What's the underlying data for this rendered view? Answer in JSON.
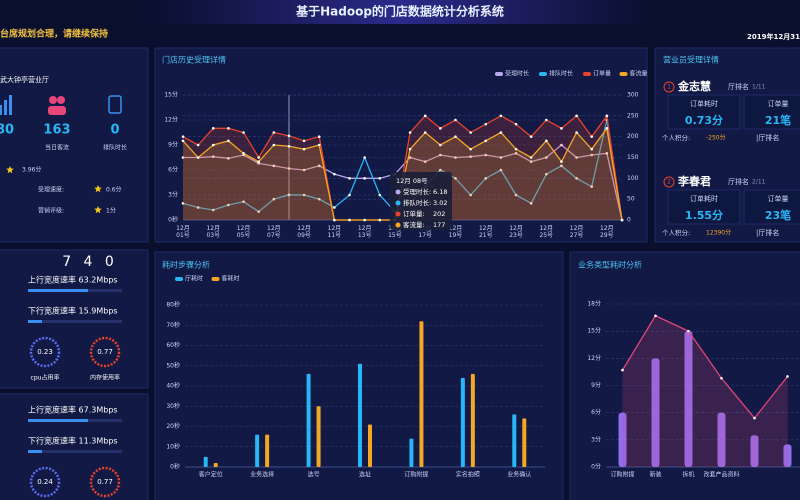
{
  "header": {
    "title": "基于Hadoop的门店数据统计分析系统",
    "notice": "台席规划合理，请继续保持",
    "date": "2019年12月31"
  },
  "store": {
    "name": "武大钟亭营业厅",
    "stats": [
      {
        "value": "80"
      },
      {
        "value": "163",
        "label": "当日客流"
      },
      {
        "value": "0",
        "label": "排队时长"
      }
    ],
    "rating": "3.96分",
    "speed_label": "受理速度:",
    "speed": "0.6分",
    "marketing_label": "营销评级:",
    "marketing": "1分"
  },
  "staff_panel": {
    "title": "营业员受理详情",
    "staff": [
      {
        "rank": "1",
        "name": "金志慧",
        "hall_rank_label": "厅排名",
        "hall_rank": "1/11",
        "order_time_label": "订单耗时",
        "order_time": "0.73分",
        "orders_label": "订单量",
        "orders": "21笔",
        "score_label": "个人积分:",
        "score": "-250分",
        "score_rank_label": "|厅排名"
      },
      {
        "rank": "2",
        "name": "李春君",
        "hall_rank_label": "厅排名",
        "hall_rank": "2/11",
        "order_time_label": "订单耗时",
        "order_time": "1.55分",
        "orders_label": "订单量",
        "orders": "23笔",
        "score_label": "个人积分:",
        "score": "12390分",
        "score_rank_label": "|厅排名"
      }
    ]
  },
  "network": {
    "counter": "7 4 0",
    "blocks": [
      {
        "up": "上行宽度速率 63.2Mbps",
        "down": "下行宽度速率 15.9Mbps",
        "cpu": "0.23",
        "cpu_label": "cpu占用率",
        "mem": "0.77",
        "mem_label": "内存使用率"
      },
      {
        "up": "上行宽度速率 67.3Mbps",
        "down": "下行宽度速率 11.3Mbps",
        "cpu": "0.24",
        "mem": "0.77"
      }
    ]
  },
  "chart_data": [
    {
      "type": "line",
      "title": "门店历史受理详情",
      "categories": [
        "12月01号",
        null,
        "12月03号",
        null,
        "12月05号",
        null,
        "12月07号",
        null,
        "12月09号",
        null,
        "12月11号",
        null,
        "12月13号",
        null,
        "12月15号",
        null,
        "12月17号",
        null,
        "12月19号",
        null,
        "12月21号",
        null,
        "12月23号",
        null,
        "12月25号",
        null,
        "12月27号",
        null,
        "12月29号",
        null
      ],
      "series": [
        {
          "name": "受理时长",
          "color": "#b9a7f0",
          "values": [
            7.5,
            7.5,
            7.6,
            7.4,
            7.8,
            6.8,
            6.5,
            6.18,
            6,
            6.5,
            5.5,
            5,
            5,
            5,
            5.5,
            7.5,
            7,
            7.8,
            7.5,
            7.6,
            7.8,
            7.5,
            8,
            7,
            7.5,
            9,
            7.5,
            7.8,
            8,
            0
          ]
        },
        {
          "name": "排队时长",
          "color": "#29b6f6",
          "values": [
            2,
            1.5,
            1.2,
            1.8,
            2.2,
            1,
            2.5,
            3.02,
            3,
            2.5,
            1.5,
            3,
            7.5,
            3,
            1,
            2,
            4,
            6,
            5,
            3,
            5,
            6,
            3,
            2,
            5.5,
            6.5,
            5,
            4,
            12,
            0
          ]
        },
        {
          "name": "订单量",
          "color": "#e8432a",
          "axis": "y2",
          "values": [
            200,
            180,
            220,
            220,
            210,
            150,
            210,
            202,
            190,
            200,
            0,
            0,
            0,
            0,
            0,
            210,
            250,
            220,
            240,
            210,
            230,
            250,
            230,
            200,
            240,
            220,
            250,
            200,
            250,
            0
          ]
        },
        {
          "name": "客流量",
          "color": "#f5a623",
          "axis": "y2",
          "values": [
            190,
            150,
            180,
            190,
            160,
            140,
            180,
            177,
            170,
            180,
            0,
            0,
            0,
            0,
            0,
            170,
            210,
            180,
            200,
            170,
            190,
            210,
            170,
            150,
            190,
            140,
            210,
            170,
            220,
            0
          ]
        }
      ],
      "ylim": [
        0,
        15
      ],
      "yticks": [
        {
          "value": 0,
          "label": "0秒"
        },
        {
          "value": 3,
          "label": "3分"
        },
        {
          "value": 6,
          "label": "6分"
        },
        {
          "value": 9,
          "label": "9分"
        },
        {
          "value": 12,
          "label": "12分"
        },
        {
          "value": 15,
          "label": "15分"
        }
      ],
      "y2lim": [
        0,
        300
      ],
      "y2ticks": [
        0,
        50,
        100,
        150,
        200,
        250,
        300
      ],
      "grid": true,
      "legend": "top-right",
      "tooltip": {
        "title": "12月 08号",
        "rows": [
          {
            "label": "受理时长:",
            "value": 6.18
          },
          {
            "label": "排队时长:",
            "value": 3.02
          },
          {
            "label": "订单量:",
            "value": 202
          },
          {
            "label": "客流量:",
            "value": 177
          }
        ]
      }
    },
    {
      "type": "bar",
      "title": "耗时步骤分析",
      "categories": [
        "客户定位",
        "业务选择",
        "选号",
        "选址",
        "订购附提",
        "实名拍照",
        "业务确认"
      ],
      "series": [
        {
          "name": "厅耗时",
          "color": "#29b6f6",
          "values": [
            5,
            16,
            46,
            51,
            14,
            44,
            26
          ]
        },
        {
          "name": "客耗时",
          "color": "#f5a623",
          "values": [
            2,
            16,
            30,
            21,
            72,
            46,
            24
          ]
        }
      ],
      "ylim": [
        0,
        80
      ],
      "yticks": [
        {
          "value": 0,
          "label": "0秒"
        },
        {
          "value": 10,
          "label": "10秒"
        },
        {
          "value": 20,
          "label": "20秒"
        },
        {
          "value": 30,
          "label": "30秒"
        },
        {
          "value": 40,
          "label": "40秒"
        },
        {
          "value": 50,
          "label": "50秒"
        },
        {
          "value": 60,
          "label": "60秒"
        },
        {
          "value": 70,
          "label": "70秒"
        },
        {
          "value": 80,
          "label": "80秒"
        }
      ],
      "grid": true,
      "legend": "top-left"
    },
    {
      "type": "combo",
      "title": "业务类型耗时分析",
      "categories": [
        "订购附提",
        "新装",
        "拆机",
        "改套产品资料",
        null,
        null
      ],
      "series": [
        {
          "type": "bar",
          "color": "#8f6ef0",
          "values": [
            6,
            12,
            15,
            6,
            3.5,
            2.5
          ]
        },
        {
          "type": "line",
          "color": "#e0457a",
          "values": [
            10.7,
            16.7,
            15,
            9.8,
            5.4,
            10
          ]
        }
      ],
      "ylim": [
        0,
        18
      ],
      "yticks": [
        {
          "value": 0,
          "label": "0分"
        },
        {
          "value": 3,
          "label": "3分"
        },
        {
          "value": 6,
          "label": "6分"
        },
        {
          "value": 9,
          "label": "9分"
        },
        {
          "value": 12,
          "label": "12分"
        },
        {
          "value": 15,
          "label": "15分"
        },
        {
          "value": 18,
          "label": "18分"
        }
      ],
      "grid": true
    }
  ]
}
